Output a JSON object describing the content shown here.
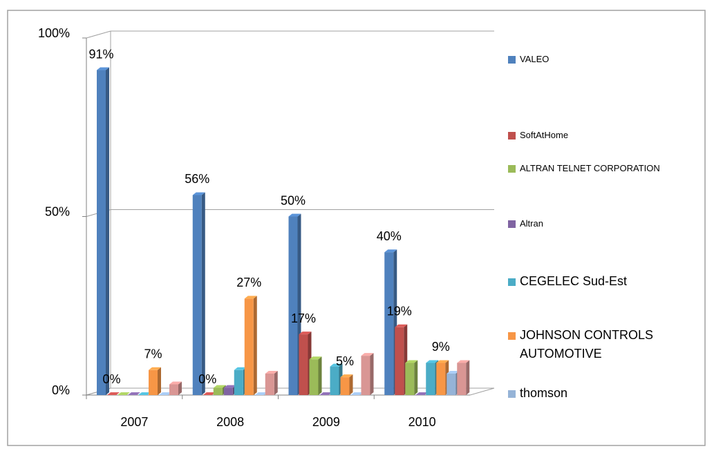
{
  "chart_data": {
    "type": "bar3d",
    "categories": [
      "2007",
      "2008",
      "2009",
      "2010"
    ],
    "series": [
      {
        "name": "VALEO",
        "color": "#4f81bd",
        "values": [
          91,
          56,
          50,
          40
        ],
        "value_labels": [
          "91%",
          "56%",
          "50%",
          "40%"
        ]
      },
      {
        "name": "SoftAtHome",
        "color": "#c0504d",
        "values": [
          0,
          0,
          17,
          19
        ],
        "value_labels": [
          "0%",
          "0%",
          "17%",
          "19%"
        ]
      },
      {
        "name": "ALTRAN TELNET CORPORATION",
        "color": "#9bbb59",
        "values": [
          0,
          2,
          10,
          9
        ]
      },
      {
        "name": "Altran",
        "color": "#8064a2",
        "values": [
          0,
          2,
          0,
          0
        ]
      },
      {
        "name": "CEGELEC Sud-Est",
        "color": "#4bacc6",
        "values": [
          0,
          7,
          8,
          9
        ]
      },
      {
        "name": "JOHNSON CONTROLS AUTOMOTIVE",
        "color": "#f79646",
        "values": [
          7,
          27,
          5,
          9
        ],
        "value_labels": [
          "7%",
          "27%",
          "5%",
          "9%"
        ]
      },
      {
        "name": "thomson",
        "color": "#95b3d7",
        "values": [
          0,
          0,
          0,
          6
        ]
      },
      {
        "name": null,
        "color": "#d99694",
        "values": [
          3,
          6,
          11,
          9
        ]
      }
    ],
    "ylim": [
      0,
      100
    ],
    "yticks": [
      {
        "value": 0,
        "label": "0%"
      },
      {
        "value": 50,
        "label": "50%"
      },
      {
        "value": 100,
        "label": "100%"
      }
    ],
    "grid": true
  }
}
